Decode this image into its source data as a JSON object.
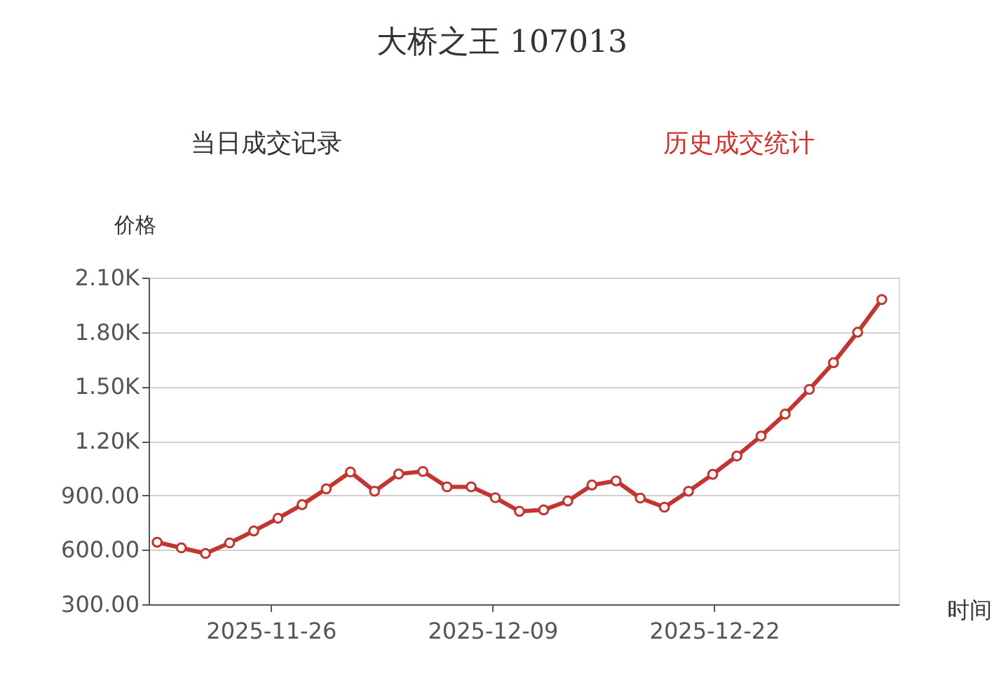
{
  "chart_data": {
    "type": "line",
    "title": "大桥之王 107013",
    "annotations": [
      "当日成交记录",
      "历史成交统计"
    ],
    "xlabel": "时间",
    "ylabel": "价格",
    "x": [
      "2025-11-19T08:00",
      "2025-11-20T18:00",
      "2025-11-22T04:00",
      "2025-11-23T14:00",
      "2025-11-25T00:00",
      "2025-11-26T10:00",
      "2025-11-27T20:00",
      "2025-11-29T06:00",
      "2025-11-30T16:00",
      "2025-12-02T02:00",
      "2025-12-03T12:00",
      "2025-12-04T22:00",
      "2025-12-06T08:00",
      "2025-12-07T18:00",
      "2025-12-09T04:00",
      "2025-12-10T14:00",
      "2025-12-12T00:00",
      "2025-12-13T10:00",
      "2025-12-14T20:00",
      "2025-12-16T06:00",
      "2025-12-17T16:00",
      "2025-12-19T02:00",
      "2025-12-20T12:00",
      "2025-12-21T22:00",
      "2025-12-23T08:00",
      "2025-12-24T18:00",
      "2025-12-26T04:00",
      "2025-12-27T14:00",
      "2025-12-29T00:00",
      "2025-12-30T10:00",
      "2025-12-31T20:00"
    ],
    "series": [
      {
        "color": "#c23531",
        "values": [
          642,
          611,
          580,
          638,
          704,
          774,
          849,
          936,
          1029,
          923,
          1018,
          1032,
          947,
          947,
          887,
          812,
          820,
          869,
          957,
          980,
          885,
          835,
          923,
          1016,
          1117,
          1227,
          1348,
          1484,
          1631,
          1799,
          1979
        ]
      }
    ],
    "xlim": [
      "2025-11-18T20:00",
      "2026-01-01T20:00"
    ],
    "xticks": [
      "2025-11-26",
      "2025-12-09",
      "2025-12-22"
    ],
    "ylim": [
      300,
      2100
    ],
    "yticks": [
      {
        "value": 300,
        "label": "300.00"
      },
      {
        "value": 600,
        "label": "600.00"
      },
      {
        "value": 900,
        "label": "900.00"
      },
      {
        "value": 1200,
        "label": "1.20K"
      },
      {
        "value": 1500,
        "label": "1.50K"
      },
      {
        "value": 1800,
        "label": "1.80K"
      },
      {
        "value": 2100,
        "label": "2.10K"
      }
    ],
    "grid": "y",
    "marker": "circle",
    "line_style": "solid"
  }
}
